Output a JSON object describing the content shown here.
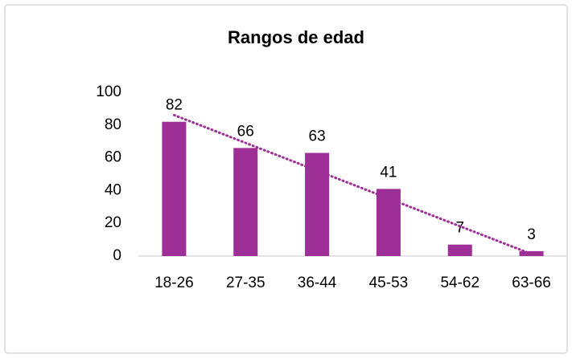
{
  "chart_data": {
    "type": "bar",
    "title": "Rangos de edad",
    "categories": [
      "18-26",
      "27-35",
      "36-44",
      "45-53",
      "54-62",
      "63-66"
    ],
    "values": [
      82,
      66,
      63,
      41,
      7,
      3
    ],
    "color": "#9e2f96",
    "ylim": [
      0,
      100
    ],
    "yticks": [
      0,
      20,
      40,
      60,
      80,
      100
    ],
    "grid": false,
    "trendline": "linear",
    "show_value_labels": true
  }
}
